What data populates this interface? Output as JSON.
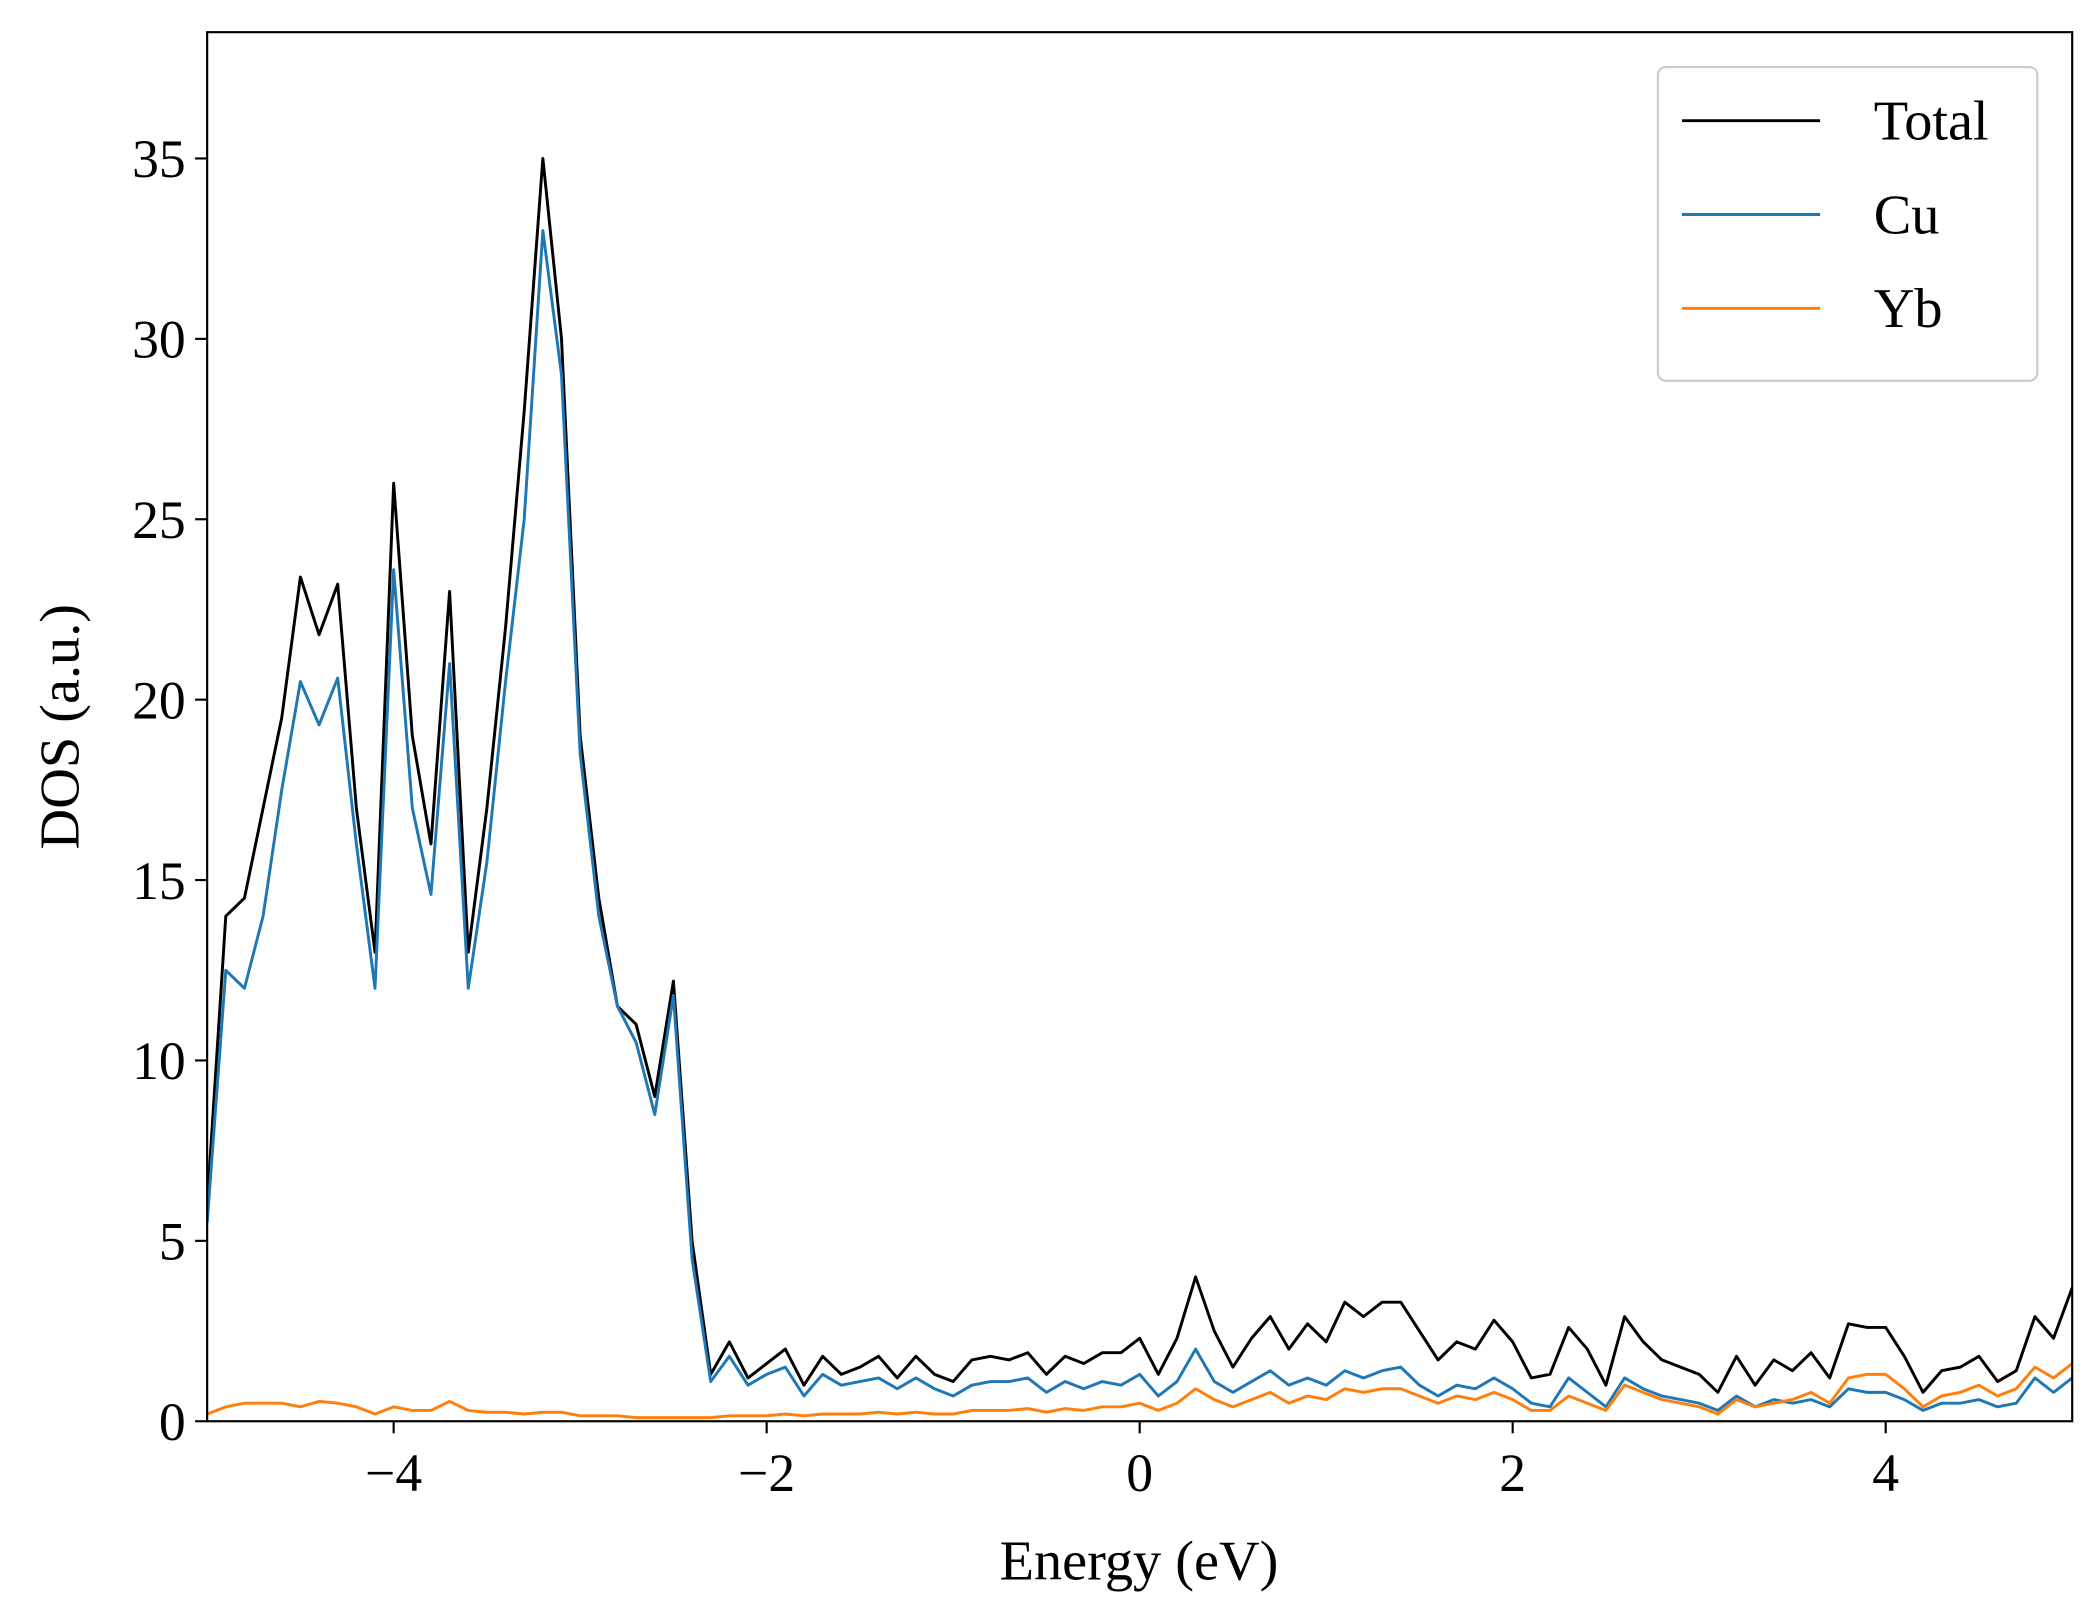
{
  "chart_data": {
    "type": "line",
    "xlabel": "Energy (eV)",
    "ylabel": "DOS (a.u.)",
    "x": [
      -5,
      -4.9,
      -4.8,
      -4.7,
      -4.6,
      -4.5,
      -4.4,
      -4.3,
      -4.2,
      -4.1,
      -4,
      -3.9,
      -3.8,
      -3.7,
      -3.6,
      -3.5,
      -3.4,
      -3.3,
      -3.2,
      -3.1,
      -3,
      -2.9,
      -2.8,
      -2.7,
      -2.6,
      -2.5,
      -2.4,
      -2.3,
      -2.2,
      -2.1,
      -2,
      -1.9,
      -1.8,
      -1.7,
      -1.6,
      -1.5,
      -1.4,
      -1.3,
      -1.2,
      -1.1,
      -1,
      -0.9,
      -0.8,
      -0.7,
      -0.6,
      -0.5,
      -0.4,
      -0.3,
      -0.2,
      -0.1,
      0,
      0.1,
      0.2,
      0.3,
      0.4,
      0.5,
      0.6,
      0.7,
      0.8,
      0.9,
      1,
      1.1,
      1.2,
      1.3,
      1.4,
      1.5,
      1.6,
      1.7,
      1.8,
      1.9,
      2,
      2.1,
      2.2,
      2.3,
      2.4,
      2.5,
      2.6,
      2.7,
      2.8,
      2.9,
      3,
      3.1,
      3.2,
      3.3,
      3.4,
      3.5,
      3.6,
      3.7,
      3.8,
      3.9,
      4,
      4.1,
      4.2,
      4.3,
      4.4,
      4.5,
      4.6,
      4.7,
      4.8,
      4.9,
      5
    ],
    "series": [
      {
        "name": "Total",
        "color": "#000000",
        "values": [
          6,
          14,
          14.5,
          17,
          19.5,
          23.4,
          21.8,
          23.2,
          17,
          13,
          26,
          19,
          16,
          23,
          13,
          17,
          22,
          28,
          35,
          30,
          19,
          14.5,
          11.5,
          11,
          9,
          12.2,
          5,
          1.3,
          2.2,
          1.2,
          1.6,
          2.0,
          1.0,
          1.8,
          1.3,
          1.5,
          1.8,
          1.2,
          1.8,
          1.3,
          1.1,
          1.7,
          1.8,
          1.7,
          1.9,
          1.3,
          1.8,
          1.6,
          1.9,
          1.9,
          2.3,
          1.3,
          2.3,
          4.0,
          2.5,
          1.5,
          2.3,
          2.9,
          2.0,
          2.7,
          2.2,
          3.3,
          2.9,
          3.3,
          3.3,
          2.5,
          1.7,
          2.2,
          2.0,
          2.8,
          2.2,
          1.2,
          1.3,
          2.6,
          2.0,
          1.0,
          2.9,
          2.2,
          1.7,
          1.5,
          1.3,
          0.8,
          1.8,
          1.0,
          1.7,
          1.4,
          1.9,
          1.2,
          2.7,
          2.6,
          2.6,
          1.8,
          0.8,
          1.4,
          1.5,
          1.8,
          1.1,
          1.4,
          2.9,
          2.3,
          3.7
        ]
      },
      {
        "name": "Cu",
        "color": "#1f77b4",
        "values": [
          5.5,
          12.5,
          12,
          14,
          17.5,
          20.5,
          19.3,
          20.6,
          16,
          12,
          23.6,
          17,
          14.6,
          21,
          12,
          15.5,
          20.5,
          25,
          33,
          29,
          18.5,
          14,
          11.5,
          10.5,
          8.5,
          11.8,
          4.5,
          1.1,
          1.8,
          1.0,
          1.3,
          1.5,
          0.7,
          1.3,
          1.0,
          1.1,
          1.2,
          0.9,
          1.2,
          0.9,
          0.7,
          1.0,
          1.1,
          1.1,
          1.2,
          0.8,
          1.1,
          0.9,
          1.1,
          1.0,
          1.3,
          0.7,
          1.1,
          2.0,
          1.1,
          0.8,
          1.1,
          1.4,
          1.0,
          1.2,
          1.0,
          1.4,
          1.2,
          1.4,
          1.5,
          1.0,
          0.7,
          1.0,
          0.9,
          1.2,
          0.9,
          0.5,
          0.4,
          1.2,
          0.8,
          0.4,
          1.2,
          0.9,
          0.7,
          0.6,
          0.5,
          0.3,
          0.7,
          0.4,
          0.6,
          0.5,
          0.6,
          0.4,
          0.9,
          0.8,
          0.8,
          0.6,
          0.3,
          0.5,
          0.5,
          0.6,
          0.4,
          0.5,
          1.2,
          0.8,
          1.2
        ]
      },
      {
        "name": "Yb",
        "color": "#ff7f0e",
        "values": [
          0.2,
          0.4,
          0.5,
          0.5,
          0.5,
          0.4,
          0.55,
          0.5,
          0.4,
          0.2,
          0.4,
          0.3,
          0.3,
          0.55,
          0.3,
          0.25,
          0.25,
          0.2,
          0.25,
          0.25,
          0.15,
          0.15,
          0.15,
          0.1,
          0.1,
          0.1,
          0.1,
          0.1,
          0.15,
          0.15,
          0.15,
          0.2,
          0.15,
          0.2,
          0.2,
          0.2,
          0.25,
          0.2,
          0.25,
          0.2,
          0.2,
          0.3,
          0.3,
          0.3,
          0.35,
          0.25,
          0.35,
          0.3,
          0.4,
          0.4,
          0.5,
          0.3,
          0.5,
          0.9,
          0.6,
          0.4,
          0.6,
          0.8,
          0.5,
          0.7,
          0.6,
          0.9,
          0.8,
          0.9,
          0.9,
          0.7,
          0.5,
          0.7,
          0.6,
          0.8,
          0.6,
          0.3,
          0.3,
          0.7,
          0.5,
          0.3,
          1.0,
          0.8,
          0.6,
          0.5,
          0.4,
          0.2,
          0.6,
          0.4,
          0.5,
          0.6,
          0.8,
          0.5,
          1.2,
          1.3,
          1.3,
          0.9,
          0.4,
          0.7,
          0.8,
          1.0,
          0.7,
          0.9,
          1.5,
          1.2,
          1.6
        ]
      }
    ],
    "xlim": [
      -5,
      5
    ],
    "ylim": [
      0,
      38.5
    ],
    "xticks": [
      {
        "value": -4,
        "label": "−4"
      },
      {
        "value": -2,
        "label": "−2"
      },
      0,
      2,
      4
    ],
    "yticks": [
      0,
      5,
      10,
      15,
      20,
      25,
      30,
      35
    ],
    "legend": "upper right"
  }
}
